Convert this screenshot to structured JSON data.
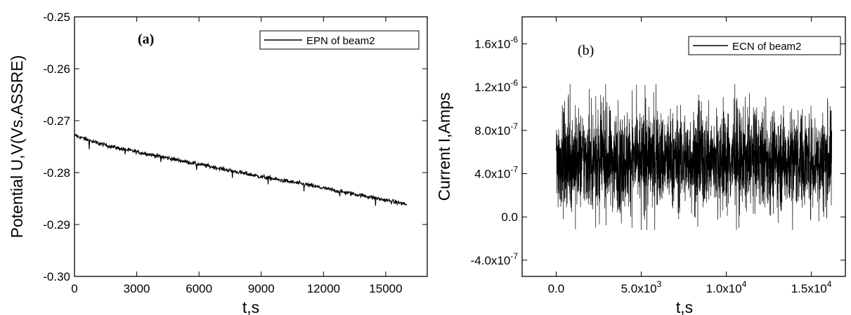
{
  "chart_data": [
    {
      "type": "line",
      "panel_label": "(a)",
      "xlabel": "t,s",
      "ylabel": "Potential U,V(Vs.ASSRE)",
      "xlim": [
        0,
        17000
      ],
      "ylim": [
        -0.3,
        -0.25
      ],
      "x_ticks": [
        0,
        3000,
        6000,
        9000,
        12000,
        15000
      ],
      "x_tick_labels": [
        "0",
        "3000",
        "6000",
        "9000",
        "12000",
        "15000"
      ],
      "y_ticks": [
        -0.25,
        -0.26,
        -0.27,
        -0.28,
        -0.29,
        -0.3
      ],
      "y_tick_labels": [
        "-0.25",
        "-0.26",
        "-0.27",
        "-0.28",
        "-0.29",
        "-0.30"
      ],
      "legend_position": "top-right",
      "series": [
        {
          "name": "EPN of beam2",
          "color": "#000000",
          "x": [
            0,
            500,
            1000,
            2000,
            3000,
            4000,
            5000,
            6000,
            7000,
            8000,
            9000,
            10000,
            11000,
            12000,
            13000,
            14000,
            15000,
            16000
          ],
          "y": [
            -0.2728,
            -0.2735,
            -0.2742,
            -0.2752,
            -0.276,
            -0.2768,
            -0.2776,
            -0.2784,
            -0.2792,
            -0.28,
            -0.2808,
            -0.2815,
            -0.2822,
            -0.283,
            -0.2838,
            -0.2845,
            -0.2853,
            -0.2861
          ],
          "noise_amplitude": 0.0004
        }
      ]
    },
    {
      "type": "line",
      "panel_label": "(b)",
      "xlabel": "t,s",
      "ylabel": "Current I,Amps",
      "xlim": [
        -2000,
        17000
      ],
      "ylim": [
        -5.5e-07,
        1.85e-06
      ],
      "x_ticks": [
        0,
        5000,
        10000,
        15000
      ],
      "x_tick_labels": [
        {
          "base": "0.0",
          "exp": ""
        },
        {
          "base": "5.0x10",
          "exp": "3"
        },
        {
          "base": "1.0x10",
          "exp": "4"
        },
        {
          "base": "1.5x10",
          "exp": "4"
        }
      ],
      "y_ticks": [
        -4e-07,
        0,
        4e-07,
        8e-07,
        1.2e-06,
        1.6e-06
      ],
      "y_tick_labels": [
        {
          "base": "-4.0x10",
          "exp": "-7"
        },
        {
          "base": "0.0",
          "exp": ""
        },
        {
          "base": "4.0x10",
          "exp": "-7"
        },
        {
          "base": "8.0x10",
          "exp": "-7"
        },
        {
          "base": "1.2x10",
          "exp": "-6"
        },
        {
          "base": "1.6x10",
          "exp": "-6"
        }
      ],
      "legend_position": "top-right",
      "series": [
        {
          "name": "ECN of beam2",
          "color": "#000000",
          "x_range": [
            0,
            16200
          ],
          "mean": 5.3e-07,
          "typical_range": [
            1.5e-07,
            9.5e-07
          ],
          "extremes": [
            -1.2e-07,
            1.23e-06
          ]
        }
      ]
    }
  ]
}
